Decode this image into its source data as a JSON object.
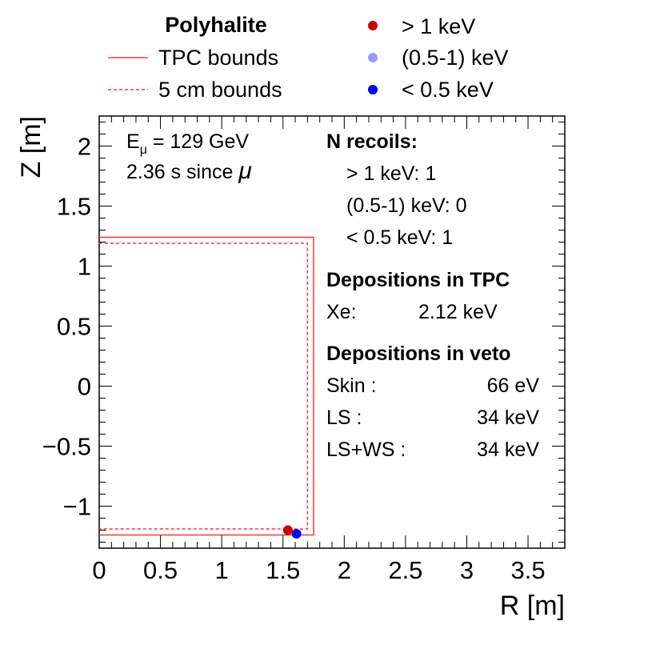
{
  "chart_data": {
    "type": "scatter",
    "title": "",
    "xlabel": "R [m]",
    "ylabel": "Z [m]",
    "xlim": [
      0,
      3.8
    ],
    "ylim": [
      -1.35,
      2.25
    ],
    "x_ticks": [
      {
        "value": 0,
        "label": "0"
      },
      {
        "value": 0.5,
        "label": "0.5"
      },
      {
        "value": 1,
        "label": "1"
      },
      {
        "value": 1.5,
        "label": "1.5"
      },
      {
        "value": 2,
        "label": "2"
      },
      {
        "value": 2.5,
        "label": "2.5"
      },
      {
        "value": 3,
        "label": "3"
      },
      {
        "value": 3.5,
        "label": "3.5"
      }
    ],
    "y_ticks": [
      {
        "value": -1,
        "label": "−1"
      },
      {
        "value": -0.5,
        "label": "−0.5"
      },
      {
        "value": 0,
        "label": "0"
      },
      {
        "value": 0.5,
        "label": "0.5"
      },
      {
        "value": 1,
        "label": "1"
      },
      {
        "value": 1.5,
        "label": "1.5"
      },
      {
        "value": 2,
        "label": "2"
      }
    ],
    "x_minor_step": 0.1,
    "y_minor_step": 0.1,
    "bounds": [
      {
        "name": "TPC bounds",
        "r_max": 1.75,
        "z_min": -1.24,
        "z_max": 1.24,
        "style": "solid",
        "color": "#ff3333"
      },
      {
        "name": "5 cm bounds",
        "r_max": 1.7,
        "z_min": -1.19,
        "z_max": 1.19,
        "style": "dashed",
        "color": "#ff3333"
      }
    ],
    "series": [
      {
        "name": "> 1 keV",
        "color": "#cc0000",
        "points": [
          {
            "r": 1.54,
            "z": -1.2
          }
        ]
      },
      {
        "name": "(0.5-1) keV",
        "color": "#9999ff",
        "points": []
      },
      {
        "name": "< 0.5 keV",
        "color": "#0000ee",
        "points": [
          {
            "r": 1.61,
            "z": -1.23
          }
        ]
      }
    ]
  },
  "legend": {
    "title": "Polyhalite",
    "lines": [
      {
        "label": "TPC bounds",
        "style": "solid",
        "color": "#ff3333"
      },
      {
        "label": "5 cm bounds",
        "style": "dashed",
        "color": "#ff3333"
      }
    ],
    "markers": [
      {
        "label": "> 1 keV",
        "color": "#cc0000"
      },
      {
        "label": "(0.5-1) keV",
        "color": "#9999ff"
      },
      {
        "label": "< 0.5 keV",
        "color": "#0000ee"
      }
    ]
  },
  "annotations": {
    "muon_energy_prefix": "E",
    "muon_energy_sub": "μ",
    "muon_energy_value": " =  129 GeV",
    "time_since_prefix": "2.36 s since ",
    "time_since_symbol": "μ",
    "recoils_heading": "N recoils:",
    "recoils": [
      {
        "label": "> 1 keV: 1"
      },
      {
        "label": "(0.5-1) keV: 0"
      },
      {
        "label": "< 0.5 keV: 1"
      }
    ],
    "tpc_heading": "Depositions in TPC",
    "tpc_rows": [
      {
        "name": "Xe:",
        "value": "2.12 keV"
      }
    ],
    "veto_heading": "Depositions in veto",
    "veto_rows": [
      {
        "name": "Skin :",
        "value": "66 eV"
      },
      {
        "name": "LS :",
        "value": "34 keV"
      },
      {
        "name": "LS+WS :",
        "value": "34 keV"
      }
    ]
  }
}
